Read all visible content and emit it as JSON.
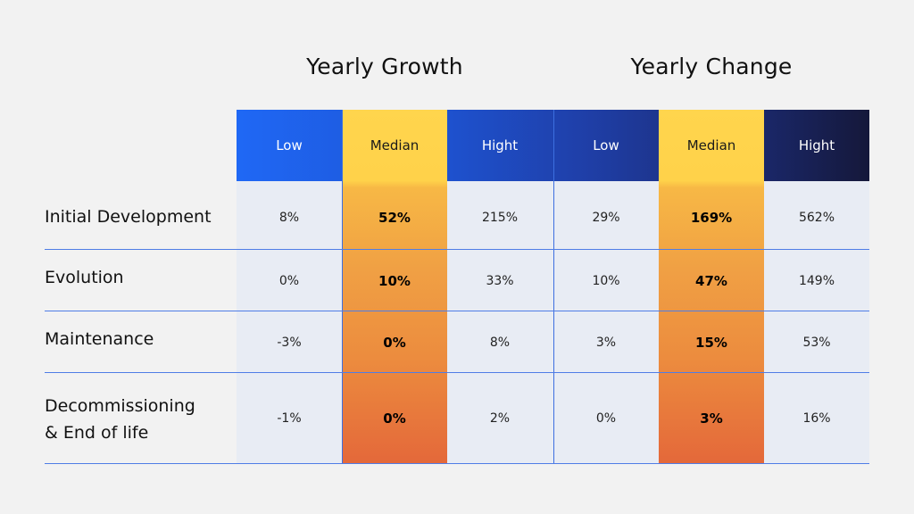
{
  "titles": {
    "growth": "Yearly Growth",
    "change": "Yearly Change"
  },
  "colors": {
    "background": "#f2f2f2",
    "header_gradient_start": "#1f68f5",
    "header_gradient_end": "#15183a",
    "median_top": "#ffd54d",
    "median_bottom": "#e4683a",
    "body_cells": "#e8ecf4",
    "lines": "#4f7de6"
  },
  "chart_data": {
    "type": "table",
    "groups": [
      "Yearly Growth",
      "Yearly Change"
    ],
    "columns": [
      "Low",
      "Median",
      "Hight",
      "Low",
      "Median",
      "Hight"
    ],
    "rows": [
      {
        "label": "Initial Development",
        "values": [
          "8%",
          "52%",
          "215%",
          "29%",
          "169%",
          "562%"
        ]
      },
      {
        "label": "Evolution",
        "values": [
          "0%",
          "10%",
          "33%",
          "10%",
          "47%",
          "149%"
        ]
      },
      {
        "label": "Maintenance",
        "values": [
          "-3%",
          "0%",
          "8%",
          "3%",
          "15%",
          "53%"
        ]
      },
      {
        "label": "Decommissioning\n& End of life",
        "values": [
          "-1%",
          "0%",
          "2%",
          "0%",
          "3%",
          "16%"
        ]
      }
    ]
  }
}
